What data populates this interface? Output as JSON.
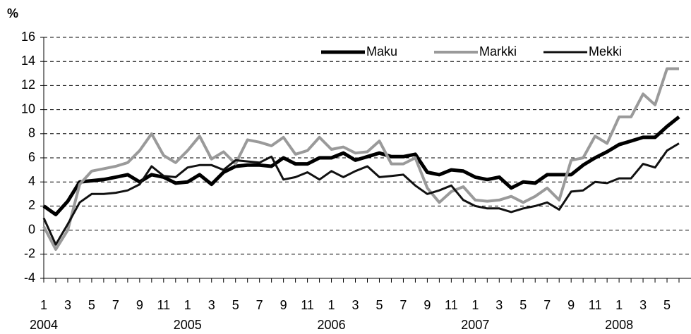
{
  "chart_data": {
    "type": "line",
    "y_axis_label": "%",
    "categories": [
      "1",
      null,
      "3",
      null,
      "5",
      null,
      "7",
      null,
      "9",
      null,
      "11",
      null,
      "1",
      null,
      "3",
      null,
      "5",
      null,
      "7",
      null,
      "9",
      null,
      "11",
      null,
      "1",
      null,
      "3",
      null,
      "5",
      null,
      "7",
      null,
      "9",
      null,
      "11",
      null,
      "1",
      null,
      "3",
      null,
      "5",
      null,
      "7",
      null,
      "9",
      null,
      "11",
      null,
      "1",
      null,
      "3",
      null,
      "5",
      null
    ],
    "years": [
      "2004",
      "2005",
      "2006",
      "2007",
      "2008"
    ],
    "ylim": [
      -4,
      16
    ],
    "yticks": [
      -4,
      -2,
      0,
      2,
      4,
      6,
      8,
      10,
      12,
      14,
      16
    ],
    "grid": true,
    "series": [
      {
        "name": "Maku",
        "color": "#000000",
        "values": [
          2.0,
          1.3,
          2.4,
          4.0,
          4.1,
          4.2,
          4.4,
          4.6,
          4.0,
          4.6,
          4.4,
          3.9,
          4.0,
          4.6,
          3.8,
          4.8,
          5.3,
          5.4,
          5.4,
          5.3,
          6.0,
          5.5,
          5.5,
          6.0,
          6.0,
          6.4,
          5.8,
          6.1,
          6.4,
          6.1,
          6.1,
          6.3,
          4.8,
          4.6,
          5.0,
          4.9,
          4.4,
          4.2,
          4.4,
          3.5,
          4.0,
          3.9,
          4.6,
          4.6,
          4.6,
          5.4,
          6.0,
          6.5,
          7.1,
          7.4,
          7.7,
          7.7,
          8.6,
          9.4
        ]
      },
      {
        "name": "Markki",
        "color": "#9a9a9a",
        "values": [
          0.3,
          -1.6,
          0.0,
          3.8,
          4.9,
          5.1,
          5.3,
          5.6,
          6.6,
          8.0,
          6.2,
          5.6,
          6.6,
          7.8,
          5.9,
          6.5,
          5.5,
          7.5,
          7.3,
          7.0,
          7.7,
          6.3,
          6.6,
          7.7,
          6.7,
          6.9,
          6.4,
          6.5,
          7.4,
          5.5,
          5.5,
          6.0,
          3.5,
          2.3,
          3.2,
          3.6,
          2.5,
          2.4,
          2.5,
          2.8,
          2.3,
          2.8,
          3.5,
          2.5,
          5.8,
          6.0,
          7.8,
          7.2,
          9.4,
          9.4,
          11.3,
          10.4,
          13.4,
          13.4
        ]
      },
      {
        "name": "Mekki",
        "color": "#111111",
        "values": [
          1.0,
          -1.2,
          0.5,
          2.3,
          3.0,
          3.0,
          3.1,
          3.3,
          3.8,
          5.3,
          4.5,
          4.4,
          5.2,
          5.4,
          5.4,
          5.0,
          5.8,
          5.7,
          5.6,
          6.1,
          4.2,
          4.4,
          4.8,
          4.2,
          4.9,
          4.4,
          4.9,
          5.3,
          4.4,
          4.5,
          4.6,
          3.7,
          3.0,
          3.3,
          3.7,
          2.5,
          2.0,
          1.8,
          1.8,
          1.5,
          1.8,
          2.0,
          2.3,
          1.7,
          3.2,
          3.3,
          4.0,
          3.9,
          4.3,
          4.3,
          5.5,
          5.2,
          6.6,
          7.2
        ]
      }
    ]
  }
}
